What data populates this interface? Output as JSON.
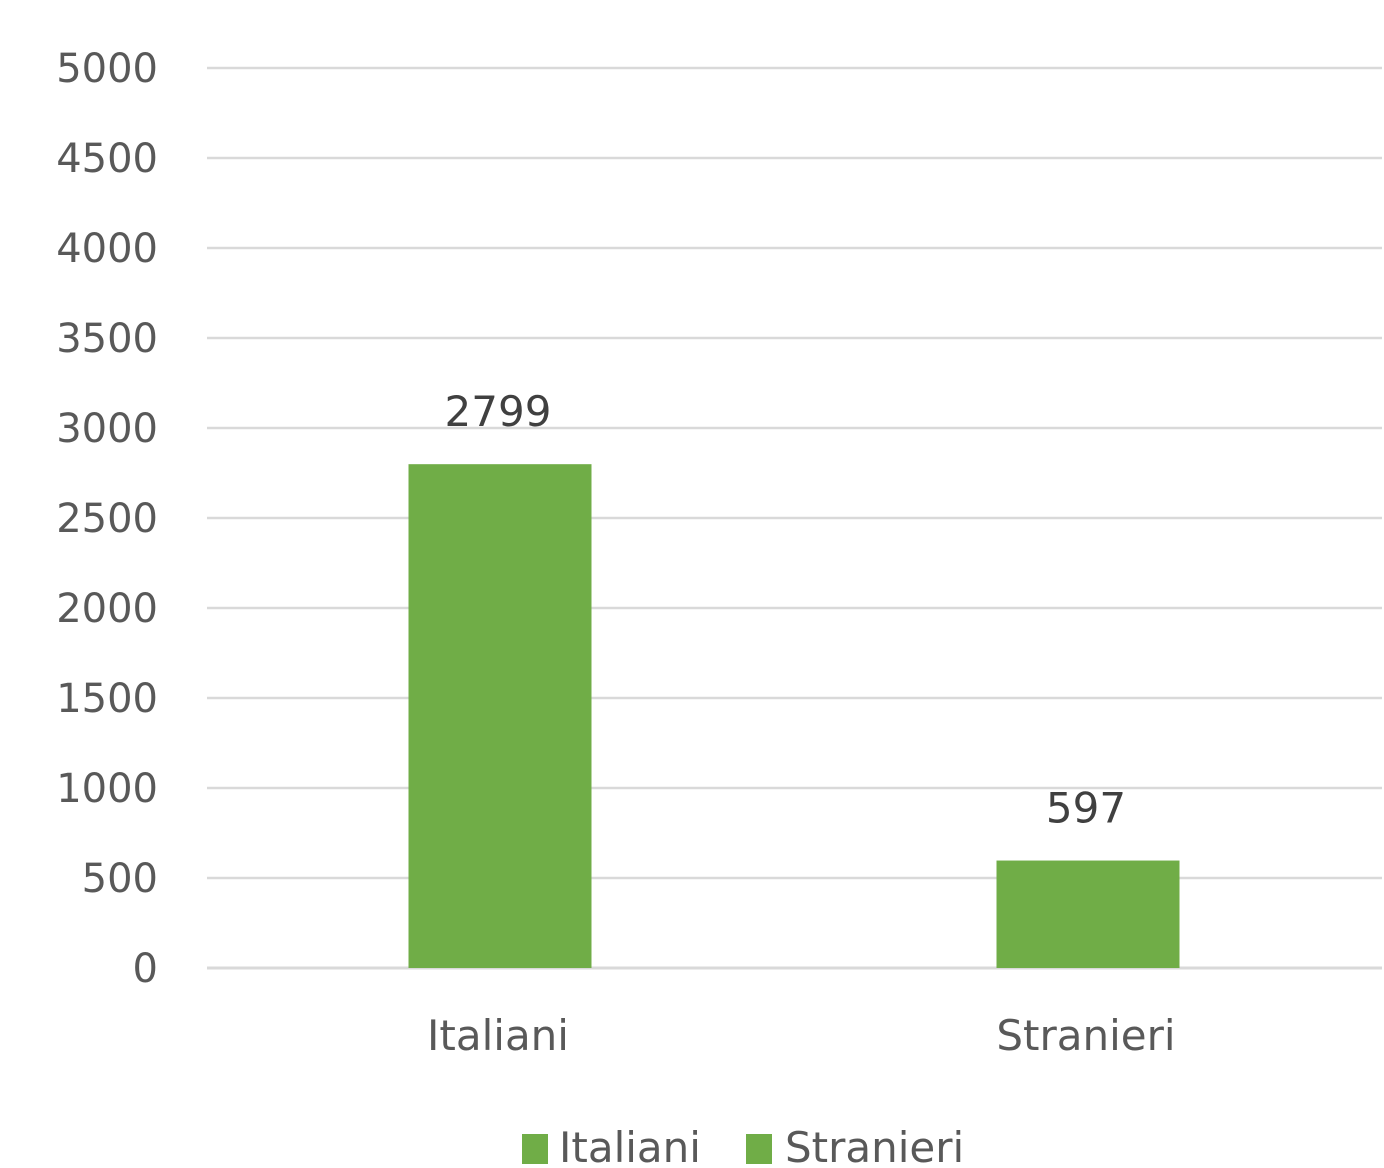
{
  "chart_data": {
    "type": "bar",
    "title": "",
    "xlabel": "",
    "ylabel": "",
    "categories": [
      "Italiani",
      "Stranieri"
    ],
    "series": [
      {
        "name": "Italiani",
        "values": [
          2799,
          null
        ],
        "color": "#70ad47"
      },
      {
        "name": "Stranieri",
        "values": [
          null,
          597
        ],
        "color": "#70ad47"
      }
    ],
    "data_labels": [
      "2799",
      "597"
    ],
    "ylim": [
      0,
      5000
    ],
    "yticks": [
      0,
      500,
      1000,
      1500,
      2000,
      2500,
      3000,
      3500,
      4000,
      4500,
      5000
    ],
    "grid": true,
    "gridline_color": "#d9d9d9",
    "legend": {
      "placement": "bottom",
      "entries": [
        "Italiani",
        "Stranieri"
      ]
    }
  }
}
